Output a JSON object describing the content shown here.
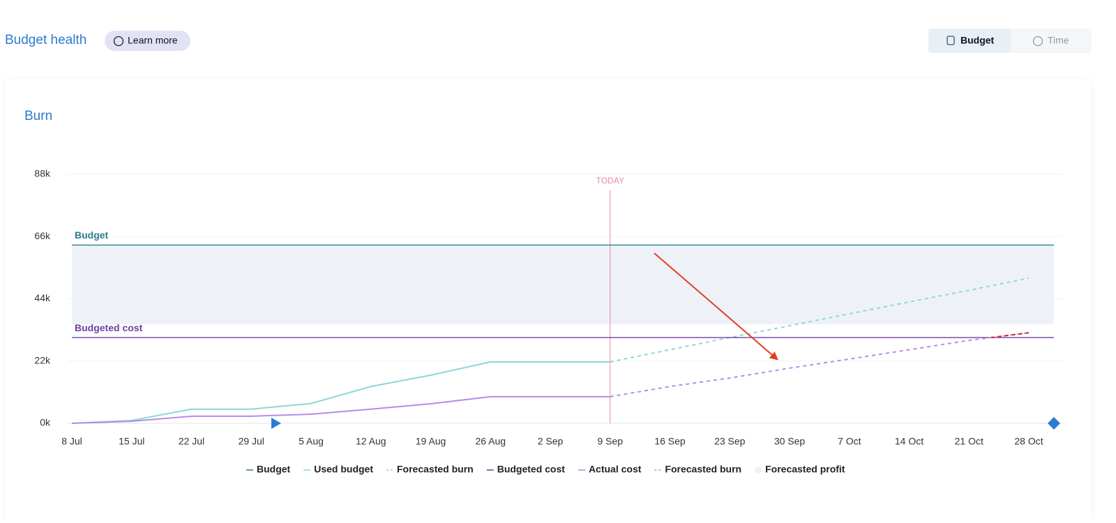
{
  "header": {
    "title": "Budget health",
    "learn_more": "Learn more"
  },
  "toggle": {
    "options": [
      "Budget",
      "Time"
    ],
    "active": 0
  },
  "card": {
    "title": "Burn"
  },
  "chart_data": {
    "type": "line",
    "categories": [
      "8 Jul",
      "15 Jul",
      "22 Jul",
      "29 Jul",
      "5 Aug",
      "12 Aug",
      "19 Aug",
      "26 Aug",
      "2 Sep",
      "9 Sep",
      "16 Sep",
      "23 Sep",
      "30 Sep",
      "7 Oct",
      "14 Oct",
      "21 Oct",
      "28 Oct"
    ],
    "ylim": [
      0,
      88000
    ],
    "yticks": [
      {
        "value": 0,
        "label": "0k"
      },
      {
        "value": 22000,
        "label": "22k"
      },
      {
        "value": 44000,
        "label": "44k"
      },
      {
        "value": 66000,
        "label": "66k"
      },
      {
        "value": 88000,
        "label": "88k"
      }
    ],
    "grid": true,
    "annotation": {
      "text": "TODAY",
      "x": "9 Sep",
      "color": "#e58aa8"
    },
    "overrun_color": "#cc2222",
    "series": [
      {
        "name": "Budget",
        "kind": "hline",
        "color": "#2a7f8a",
        "value": 63000
      },
      {
        "name": "Used budget",
        "kind": "line",
        "color": "#8fd6d3",
        "values": [
          0,
          1000,
          5000,
          5000,
          7000,
          13000,
          17000,
          21700,
          21700,
          21700,
          null,
          null,
          null,
          null,
          null,
          null,
          null
        ]
      },
      {
        "name": "Forecasted burn",
        "kind": "dashed",
        "color": "#8fd6d3",
        "values": [
          null,
          null,
          null,
          null,
          null,
          null,
          null,
          null,
          null,
          21700,
          26000,
          30300,
          34500,
          38700,
          42900,
          47000,
          51300
        ]
      },
      {
        "name": "Budgeted cost",
        "kind": "hline",
        "color": "#6b3fa0",
        "value": 30300
      },
      {
        "name": "Actual cost",
        "kind": "line",
        "color": "#b48ce8",
        "values": [
          0,
          700,
          2500,
          2500,
          3200,
          5000,
          6900,
          9400,
          9400,
          9400,
          null,
          null,
          null,
          null,
          null,
          null,
          null
        ]
      },
      {
        "name": "Forecasted burn",
        "kind": "dashed",
        "color": "#b48ce8",
        "values": [
          null,
          null,
          null,
          null,
          null,
          null,
          null,
          null,
          null,
          9400,
          13000,
          16000,
          19500,
          22700,
          26000,
          29300,
          32000
        ]
      },
      {
        "name": "Forecasted profit",
        "kind": "band",
        "color": "#eef2f8",
        "from": 35000,
        "to": 63000
      }
    ]
  }
}
